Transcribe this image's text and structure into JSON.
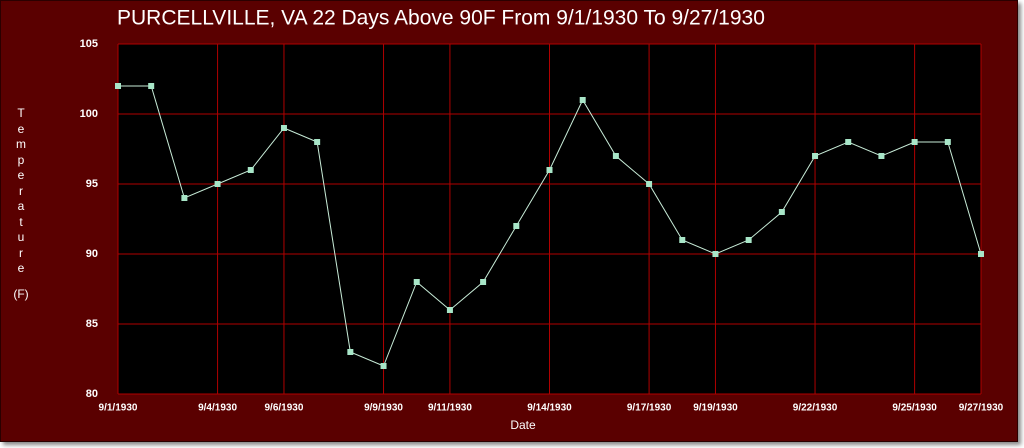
{
  "chart_data": {
    "type": "line",
    "title": "PURCELLVILLE, VA  22 Days Above 90F From 9/1/1930 To 9/27/1930",
    "xlabel": "Date",
    "ylabel": "Temperature (F)",
    "categories": [
      "9/1/1930",
      null,
      null,
      "9/4/1930",
      null,
      "9/6/1930",
      null,
      null,
      "9/9/1930",
      null,
      "9/11/1930",
      null,
      null,
      "9/14/1930",
      null,
      null,
      "9/17/1930",
      null,
      "9/19/1930",
      null,
      null,
      "9/22/1930",
      null,
      null,
      "9/25/1930",
      null,
      "9/27/1930"
    ],
    "values": [
      102,
      102,
      94,
      95,
      96,
      99,
      98,
      83,
      82,
      88,
      86,
      88,
      92,
      96,
      101,
      97,
      95,
      91,
      90,
      91,
      93,
      97,
      98,
      97,
      98,
      98,
      90
    ],
    "color": "#a8e6c8",
    "ylim": [
      80,
      105
    ],
    "yticks": [
      80,
      85,
      90,
      95,
      100,
      105
    ],
    "grid": true
  }
}
